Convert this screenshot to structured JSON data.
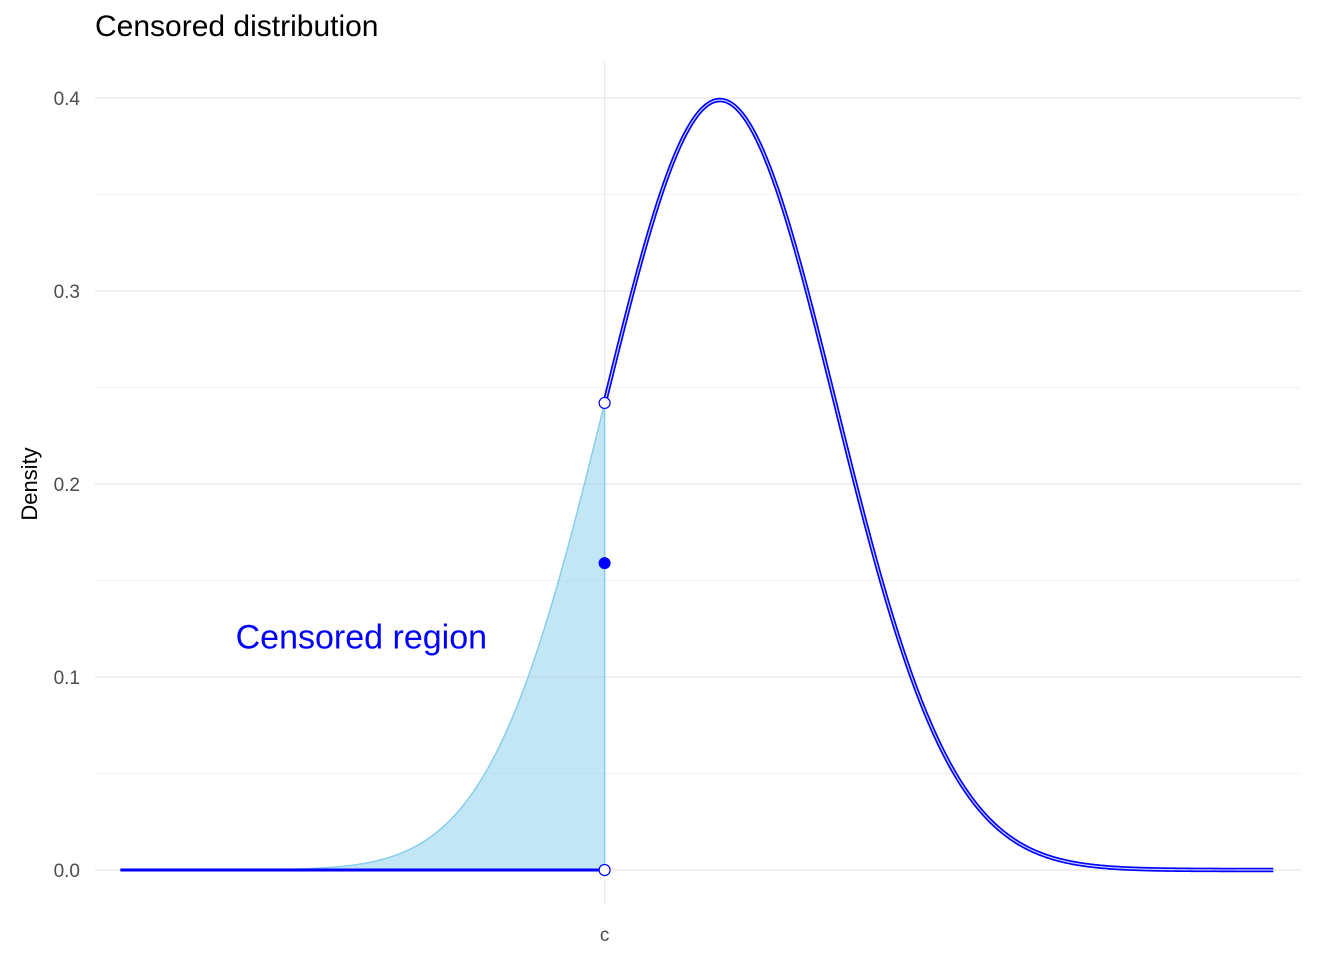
{
  "chart_data": {
    "type": "line",
    "title": "Censored distribution",
    "xlabel": "",
    "ylabel": "Density",
    "x_tick_labels": [
      "c"
    ],
    "y_ticks": [
      0.0,
      0.1,
      0.2,
      0.3,
      0.4
    ],
    "y_tick_labels": [
      "0.0",
      "0.1",
      "0.2",
      "0.3",
      "0.4"
    ],
    "xlim": [
      -4.42,
      6.04
    ],
    "ylim": [
      0,
      0.4
    ],
    "censor_point": {
      "label": "c",
      "x": 0
    },
    "series": [
      {
        "kind": "density-curve",
        "distribution": "normal",
        "mean": 1,
        "sd": 1,
        "x_range": [
          -4.2,
          5.8
        ],
        "censored_below": 0
      }
    ],
    "points": [
      {
        "x": 0,
        "y": 0.242,
        "style": "open"
      },
      {
        "x": 0,
        "y": 0.0,
        "style": "open"
      },
      {
        "x": 0,
        "y": 0.159,
        "style": "filled"
      }
    ],
    "shaded_region": {
      "x_from": -4.2,
      "x_to": 0
    },
    "annotations": [
      {
        "text": "Censored region",
        "x": -2.11,
        "y": 0.121
      }
    ],
    "grid": true,
    "colors": {
      "line": "#0000ff",
      "fill": "#87ceeb",
      "grid": "#ebebeb",
      "text": "#4d4d4d",
      "annotation": "#0000ff"
    }
  }
}
